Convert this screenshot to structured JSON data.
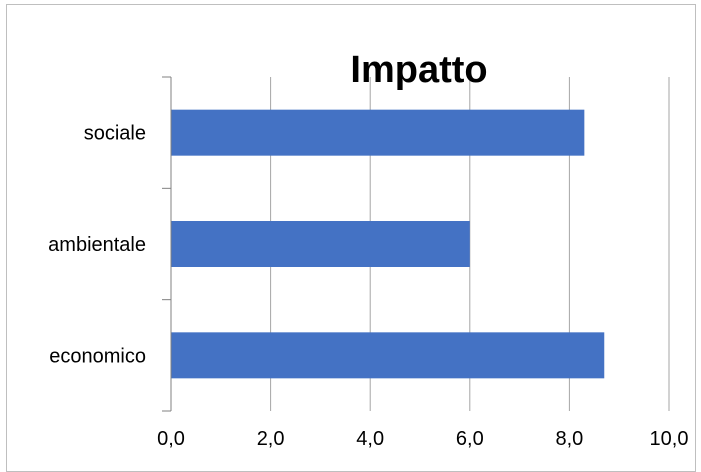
{
  "chart_data": {
    "type": "bar",
    "orientation": "horizontal",
    "title": "Impatto",
    "categories": [
      "economico",
      "ambientale",
      "sociale"
    ],
    "values": [
      8.7,
      6.0,
      8.3
    ],
    "xlim": [
      0,
      10
    ],
    "x_ticks": [
      "0,0",
      "2,0",
      "4,0",
      "6,0",
      "8,0",
      "10,0"
    ],
    "grid": true,
    "legend": "none",
    "bar_color": "#4472c4"
  }
}
